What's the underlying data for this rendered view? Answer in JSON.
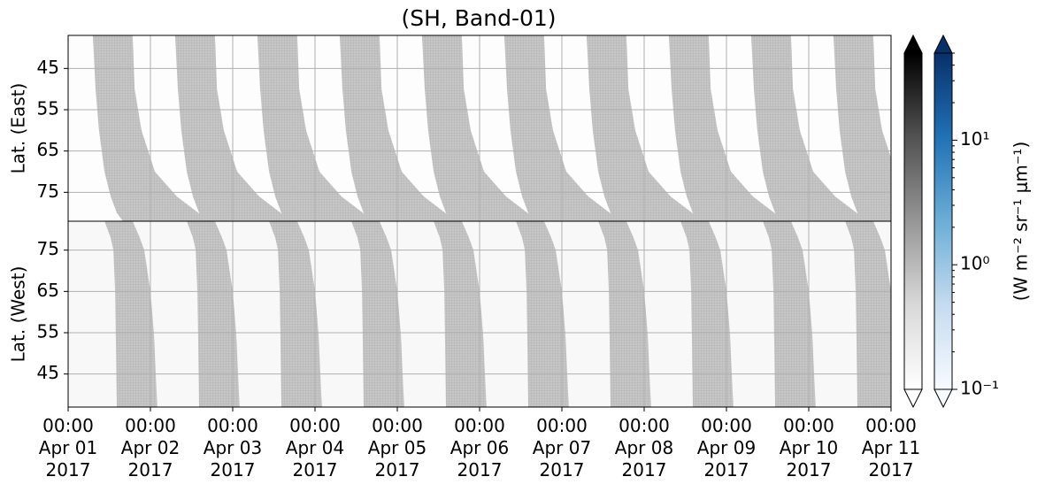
{
  "chart_data": {
    "type": "swath",
    "title": "(SH, Band-01)",
    "xlim": [
      "2017-04-01T00:00",
      "2017-04-11T00:00"
    ],
    "xticks": [
      {
        "value": "2017-04-01T00:00",
        "label": "00:00\nApr 01\n2017"
      },
      {
        "value": "2017-04-02T00:00",
        "label": "00:00\nApr 02\n2017"
      },
      {
        "value": "2017-04-03T00:00",
        "label": "00:00\nApr 03\n2017"
      },
      {
        "value": "2017-04-04T00:00",
        "label": "00:00\nApr 04\n2017"
      },
      {
        "value": "2017-04-05T00:00",
        "label": "00:00\nApr 05\n2017"
      },
      {
        "value": "2017-04-06T00:00",
        "label": "00:00\nApr 06\n2017"
      },
      {
        "value": "2017-04-07T00:00",
        "label": "00:00\nApr 07\n2017"
      },
      {
        "value": "2017-04-08T00:00",
        "label": "00:00\nApr 08\n2017"
      },
      {
        "value": "2017-04-09T00:00",
        "label": "00:00\nApr 09\n2017"
      },
      {
        "value": "2017-04-10T00:00",
        "label": "00:00\nApr 10\n2017"
      },
      {
        "value": "2017-04-11T00:00",
        "label": "00:00\nApr 11\n2017"
      }
    ],
    "grid": true,
    "swath_starts": [
      "2017-04-01T00:00",
      "2017-04-02T00:00",
      "2017-04-03T00:00",
      "2017-04-04T00:00",
      "2017-04-05T00:00",
      "2017-04-06T00:00",
      "2017-04-07T00:00",
      "2017-04-08T00:00",
      "2017-04-09T00:00",
      "2017-04-10T00:00"
    ],
    "panels": [
      {
        "ylabel": "Lat. (East)",
        "ylim": [
          82,
          37
        ],
        "yticks": [
          45,
          55,
          65,
          75
        ],
        "swath": {
          "color": "#c6c6c6",
          "lat": [
            37,
            50,
            60,
            70,
            76,
            80,
            82
          ],
          "start_hours": [
            7.2,
            8,
            9,
            10.6,
            12.4,
            14.2,
            16
          ],
          "end_hours": [
            18.8,
            19.4,
            21.4,
            25.3,
            31.7,
            38,
            42
          ]
        }
      },
      {
        "ylabel": "Lat. (West)",
        "ylim": [
          37,
          82
        ],
        "yticks": [
          45,
          55,
          65,
          75
        ],
        "swath": {
          "color": "#c6c6c6",
          "lat": [
            82,
            78,
            75,
            65,
            55,
            37
          ],
          "start_hours": [
            10.6,
            12.4,
            13.2,
            13.7,
            13.9,
            14.2
          ],
          "end_hours": [
            18.8,
            20.9,
            22.2,
            24,
            25,
            26
          ]
        }
      }
    ],
    "clim": [
      0.1,
      50
    ],
    "log": true,
    "colorbars": [
      {
        "colors": [
          "#ffffff",
          "#d9d9d9",
          "#969696",
          "#525252",
          "#000000"
        ],
        "extend": "both"
      },
      {
        "colors": [
          "#f7fbff",
          "#c6dbef",
          "#6baed6",
          "#2171b5",
          "#08306b"
        ],
        "extend": "both",
        "label": "(W m⁻² sr⁻¹ μm⁻¹)",
        "ticks": [
          {
            "value": 0.1,
            "label": "10⁻¹"
          },
          {
            "value": 1,
            "label": "10⁰"
          },
          {
            "value": 10,
            "label": "10¹"
          }
        ],
        "minor_ticks": [
          0.2,
          0.3,
          0.4,
          0.5,
          0.6,
          0.7,
          0.8,
          0.9,
          2,
          3,
          4,
          5,
          6,
          7,
          8,
          9,
          20,
          30,
          40,
          50
        ]
      }
    ]
  }
}
